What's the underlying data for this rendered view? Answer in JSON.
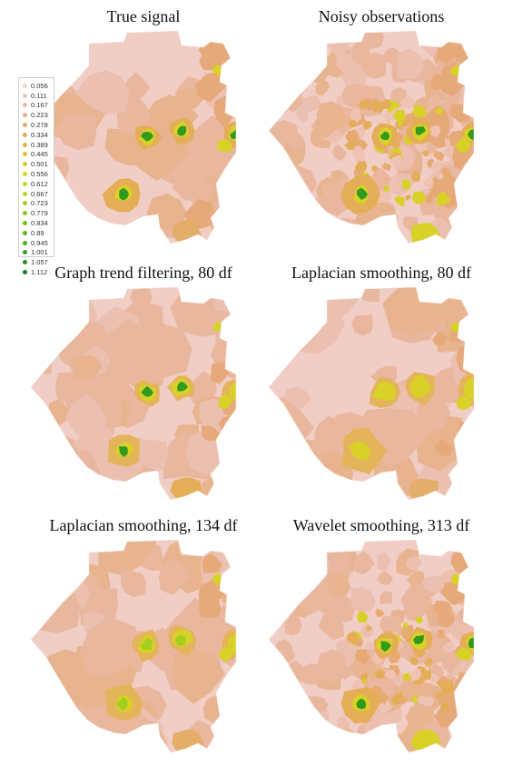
{
  "figure": {
    "panels": [
      {
        "title": "True signal"
      },
      {
        "title": "Noisy observations"
      },
      {
        "title": "Graph trend filtering, 80 df"
      },
      {
        "title": "Laplacian smoothing, 80 df"
      },
      {
        "title": "Laplacian smoothing, 134 df"
      },
      {
        "title": "Wavelet smoothing, 313 df"
      }
    ],
    "legend": {
      "values": [
        "0.056",
        "0.111",
        "0.167",
        "0.223",
        "0.278",
        "0.334",
        "0.389",
        "0.445",
        "0.501",
        "0.556",
        "0.612",
        "0.667",
        "0.723",
        "0.779",
        "0.834",
        "0.89",
        "0.945",
        "1.001",
        "1.057",
        "1.112"
      ],
      "colors": [
        "#f2cfc7",
        "#efc3b3",
        "#ecb9a0",
        "#e9b088",
        "#e7aa72",
        "#e4ad57",
        "#e2b246",
        "#dfbb38",
        "#dcc62e",
        "#d8d127",
        "#c8d623",
        "#b6d420",
        "#a1ce1f",
        "#8ac71e",
        "#72bf1d",
        "#5bb61d",
        "#45ac1d",
        "#339f1e",
        "#238f1f",
        "#167d1f"
      ]
    },
    "colors": {
      "background": "#f0cdc5",
      "low": "#e9b79e",
      "mid": "#e4ad57",
      "high_yellow": "#d8d127",
      "high_green": "#2f9a1e"
    }
  }
}
